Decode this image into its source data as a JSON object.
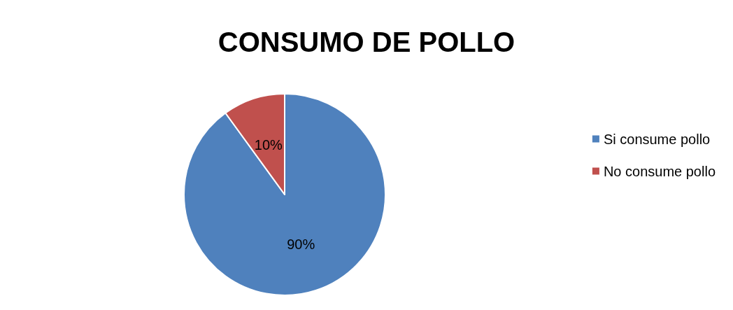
{
  "chart_data": {
    "type": "pie",
    "title": "CONSUMO DE POLLO",
    "categories": [
      "Si consume pollo",
      "No consume pollo"
    ],
    "values": [
      90,
      10
    ],
    "colors": [
      "#4f81bd",
      "#c0504d"
    ],
    "value_labels": [
      "90%",
      "10%"
    ],
    "legend": "right"
  }
}
